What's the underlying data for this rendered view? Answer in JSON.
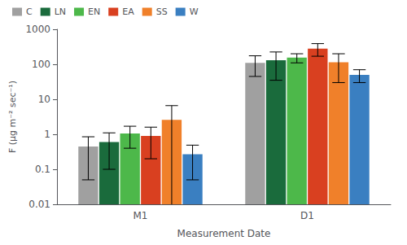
{
  "chart_data": {
    "type": "bar",
    "xlabel": "Measurement Date",
    "ylabel": "F (μg m⁻² sec⁻¹)",
    "categories": [
      "M1",
      "D1"
    ],
    "series": [
      {
        "name": "C",
        "color": "#a0a0a0",
        "values": [
          0.45,
          110
        ],
        "errors": [
          0.4,
          65
        ]
      },
      {
        "name": "LN",
        "color": "#1a6b3c",
        "values": [
          0.6,
          130
        ],
        "errors": [
          0.5,
          95
        ]
      },
      {
        "name": "EN",
        "color": "#4db84a",
        "values": [
          1.05,
          155
        ],
        "errors": [
          0.65,
          45
        ]
      },
      {
        "name": "EA",
        "color": "#d94020",
        "values": [
          0.9,
          280
        ],
        "errors": [
          0.7,
          110
        ]
      },
      {
        "name": "SS",
        "color": "#f0802a",
        "values": [
          2.6,
          115
        ],
        "errors": [
          4.0,
          85
        ]
      },
      {
        "name": "W",
        "color": "#3a7fc1",
        "values": [
          0.27,
          50
        ],
        "errors": [
          0.22,
          20
        ]
      }
    ],
    "log": "y",
    "ylim": [
      0.01,
      1000
    ],
    "yticks": [
      0.01,
      0.1,
      1,
      10,
      100,
      1000
    ],
    "grid": false,
    "legend": "upper left"
  }
}
